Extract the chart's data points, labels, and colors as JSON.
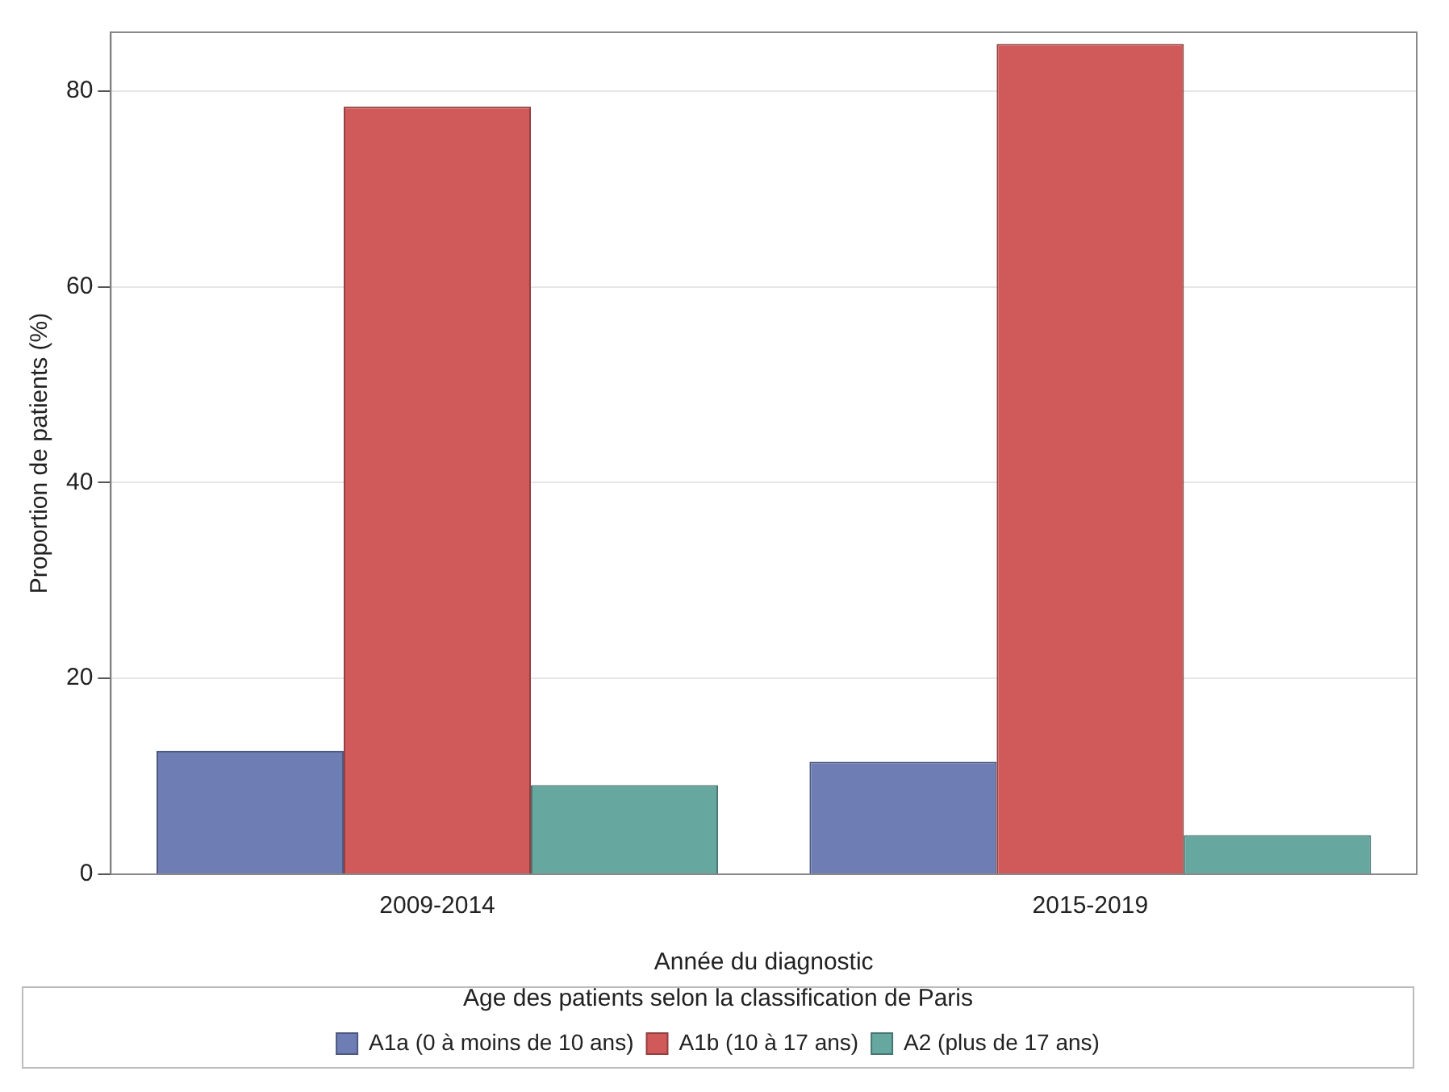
{
  "chart_data": {
    "type": "bar",
    "xlabel": "Année du diagnostic",
    "ylabel": "Proportion de patients (%)",
    "legend_title": "Age des patients selon la classification de Paris",
    "categories": [
      "2009-2014",
      "2015-2019"
    ],
    "series": [
      {
        "name": "A1a (0 à moins de 10 ans)",
        "color": "#6f7db5",
        "values": [
          12.6,
          11.5
        ]
      },
      {
        "name": "A1b (10 à 17 ans)",
        "color": "#d05a5a",
        "values": [
          78.4,
          84.8
        ]
      },
      {
        "name": "A2 (plus de 17 ans)",
        "color": "#66a8a0",
        "values": [
          9.1,
          4.0
        ]
      }
    ],
    "ylim": [
      0,
      86
    ],
    "yticks": [
      0,
      20,
      40,
      60,
      80
    ],
    "grid": "y",
    "legend": "bottom"
  }
}
